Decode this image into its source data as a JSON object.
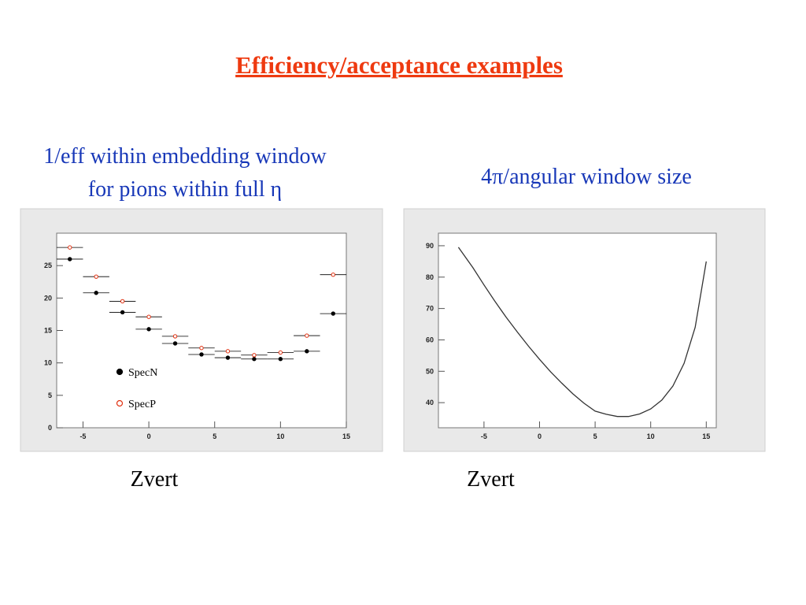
{
  "title": "Efficiency/acceptance examples",
  "chart_data": [
    {
      "type": "scatter",
      "title": [
        "1/eff within embedding window",
        "for pions within full η"
      ],
      "xlabel": "Zvert",
      "xlim": [
        -7,
        15
      ],
      "xticks": [
        -5,
        0,
        5,
        10,
        15
      ],
      "ylim": [
        0,
        30
      ],
      "yticks": [
        0,
        5,
        10,
        15,
        20,
        25
      ],
      "xerr": 1,
      "x": [
        -6,
        -4,
        -2,
        0,
        2,
        4,
        6,
        8,
        10,
        12,
        14
      ],
      "series": [
        {
          "name": "SpecN",
          "color": "#000000",
          "marker": "filled",
          "values": [
            26.0,
            20.8,
            17.8,
            15.2,
            13.0,
            11.3,
            10.8,
            10.6,
            10.6,
            11.8,
            17.6
          ]
        },
        {
          "name": "SpecP",
          "color": "#e03010",
          "marker": "open",
          "values": [
            27.8,
            23.3,
            19.5,
            17.1,
            14.1,
            12.3,
            11.8,
            11.2,
            11.6,
            14.2,
            23.6
          ]
        }
      ]
    },
    {
      "type": "line",
      "title": [
        "4π/angular window size"
      ],
      "xlabel": "Zvert",
      "xlim": [
        -9.1,
        15.9
      ],
      "xticks": [
        -5,
        0,
        5,
        10,
        15
      ],
      "ylim": [
        32,
        94
      ],
      "yticks": [
        40,
        50,
        60,
        70,
        80,
        90
      ],
      "x": [
        -7.3,
        -6,
        -5,
        -4,
        -3,
        -2,
        -1,
        0,
        1,
        2,
        3,
        4,
        5,
        6,
        7,
        8,
        9,
        10,
        11,
        12,
        13,
        14,
        15
      ],
      "series": [
        {
          "color": "#333333",
          "values": [
            89.5,
            83,
            77.5,
            72.2,
            67.2,
            62.5,
            58,
            53.8,
            49.8,
            46.2,
            42.8,
            39.8,
            37.3,
            36.3,
            35.6,
            35.6,
            36.4,
            38,
            40.8,
            45.3,
            52.5,
            64,
            85
          ]
        }
      ]
    }
  ]
}
